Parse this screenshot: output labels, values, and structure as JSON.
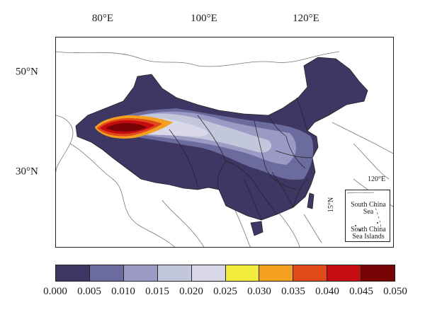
{
  "axes": {
    "lon_labels": [
      "80°E",
      "100°E",
      "120°E"
    ],
    "lat_labels": [
      "50°N",
      "30°N"
    ]
  },
  "inset": {
    "lon_label": "120°E",
    "lat_label": "15°N",
    "sea_label_line1": "South China",
    "sea_label_line2": "Sea",
    "islands_label_line1": "South China",
    "islands_label_line2": "Sea Islands"
  },
  "legend": {
    "colors": [
      "#3e3663",
      "#6b6b9e",
      "#9a9ac4",
      "#c3c7dc",
      "#d8d8e8",
      "#f4ec3c",
      "#f3a021",
      "#e04a1a",
      "#c40c12",
      "#7a0306"
    ],
    "tick_labels": [
      "0.000",
      "0.005",
      "0.010",
      "0.015",
      "0.020",
      "0.025",
      "0.030",
      "0.035",
      "0.040",
      "0.045",
      "0.050"
    ]
  }
}
